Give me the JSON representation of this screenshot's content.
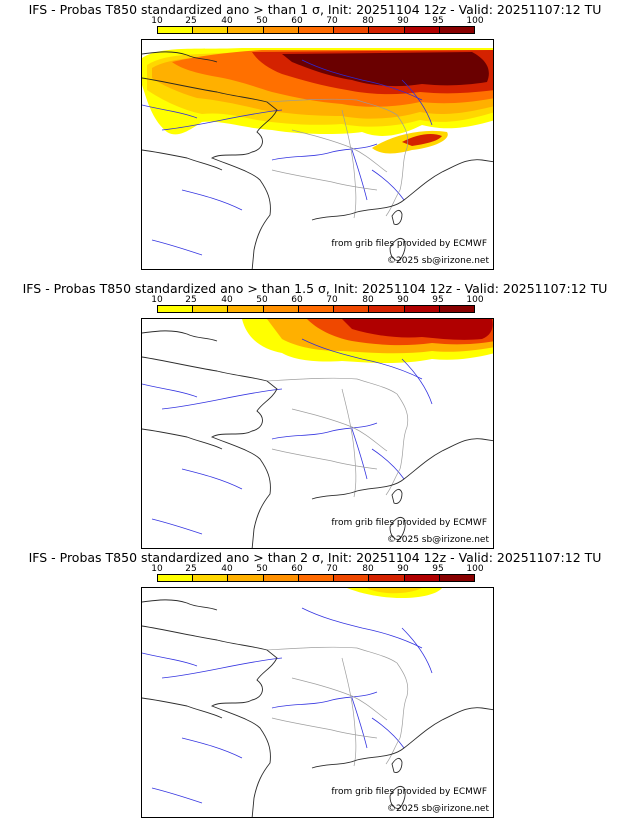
{
  "legend": {
    "ticks": [
      "10",
      "25",
      "40",
      "50",
      "60",
      "70",
      "80",
      "90",
      "95",
      "100"
    ],
    "colors": [
      "#ffff00",
      "#ffd700",
      "#ffb000",
      "#ff9000",
      "#ff6a00",
      "#ef4800",
      "#d42200",
      "#b00000",
      "#880000",
      "#5c0000"
    ]
  },
  "credits": {
    "source": "from grib files provided by ECMWF",
    "copyright": "©2025 sb@irizone.net"
  },
  "panels": [
    {
      "title": "IFS - Probas T850  standardized ano > than 1 σ, Init: 20251104 12z - Valid: 20251107:12 TU",
      "threshold_sigma": 1
    },
    {
      "title": "IFS - Probas T850  standardized ano > than 1.5 σ, Init: 20251104 12z - Valid: 20251107:12 TU",
      "threshold_sigma": 1.5
    },
    {
      "title": "IFS - Probas T850  standardized ano > than 2 σ, Init: 20251104 12z - Valid: 20251107:12 TU",
      "threshold_sigma": 2
    }
  ]
}
